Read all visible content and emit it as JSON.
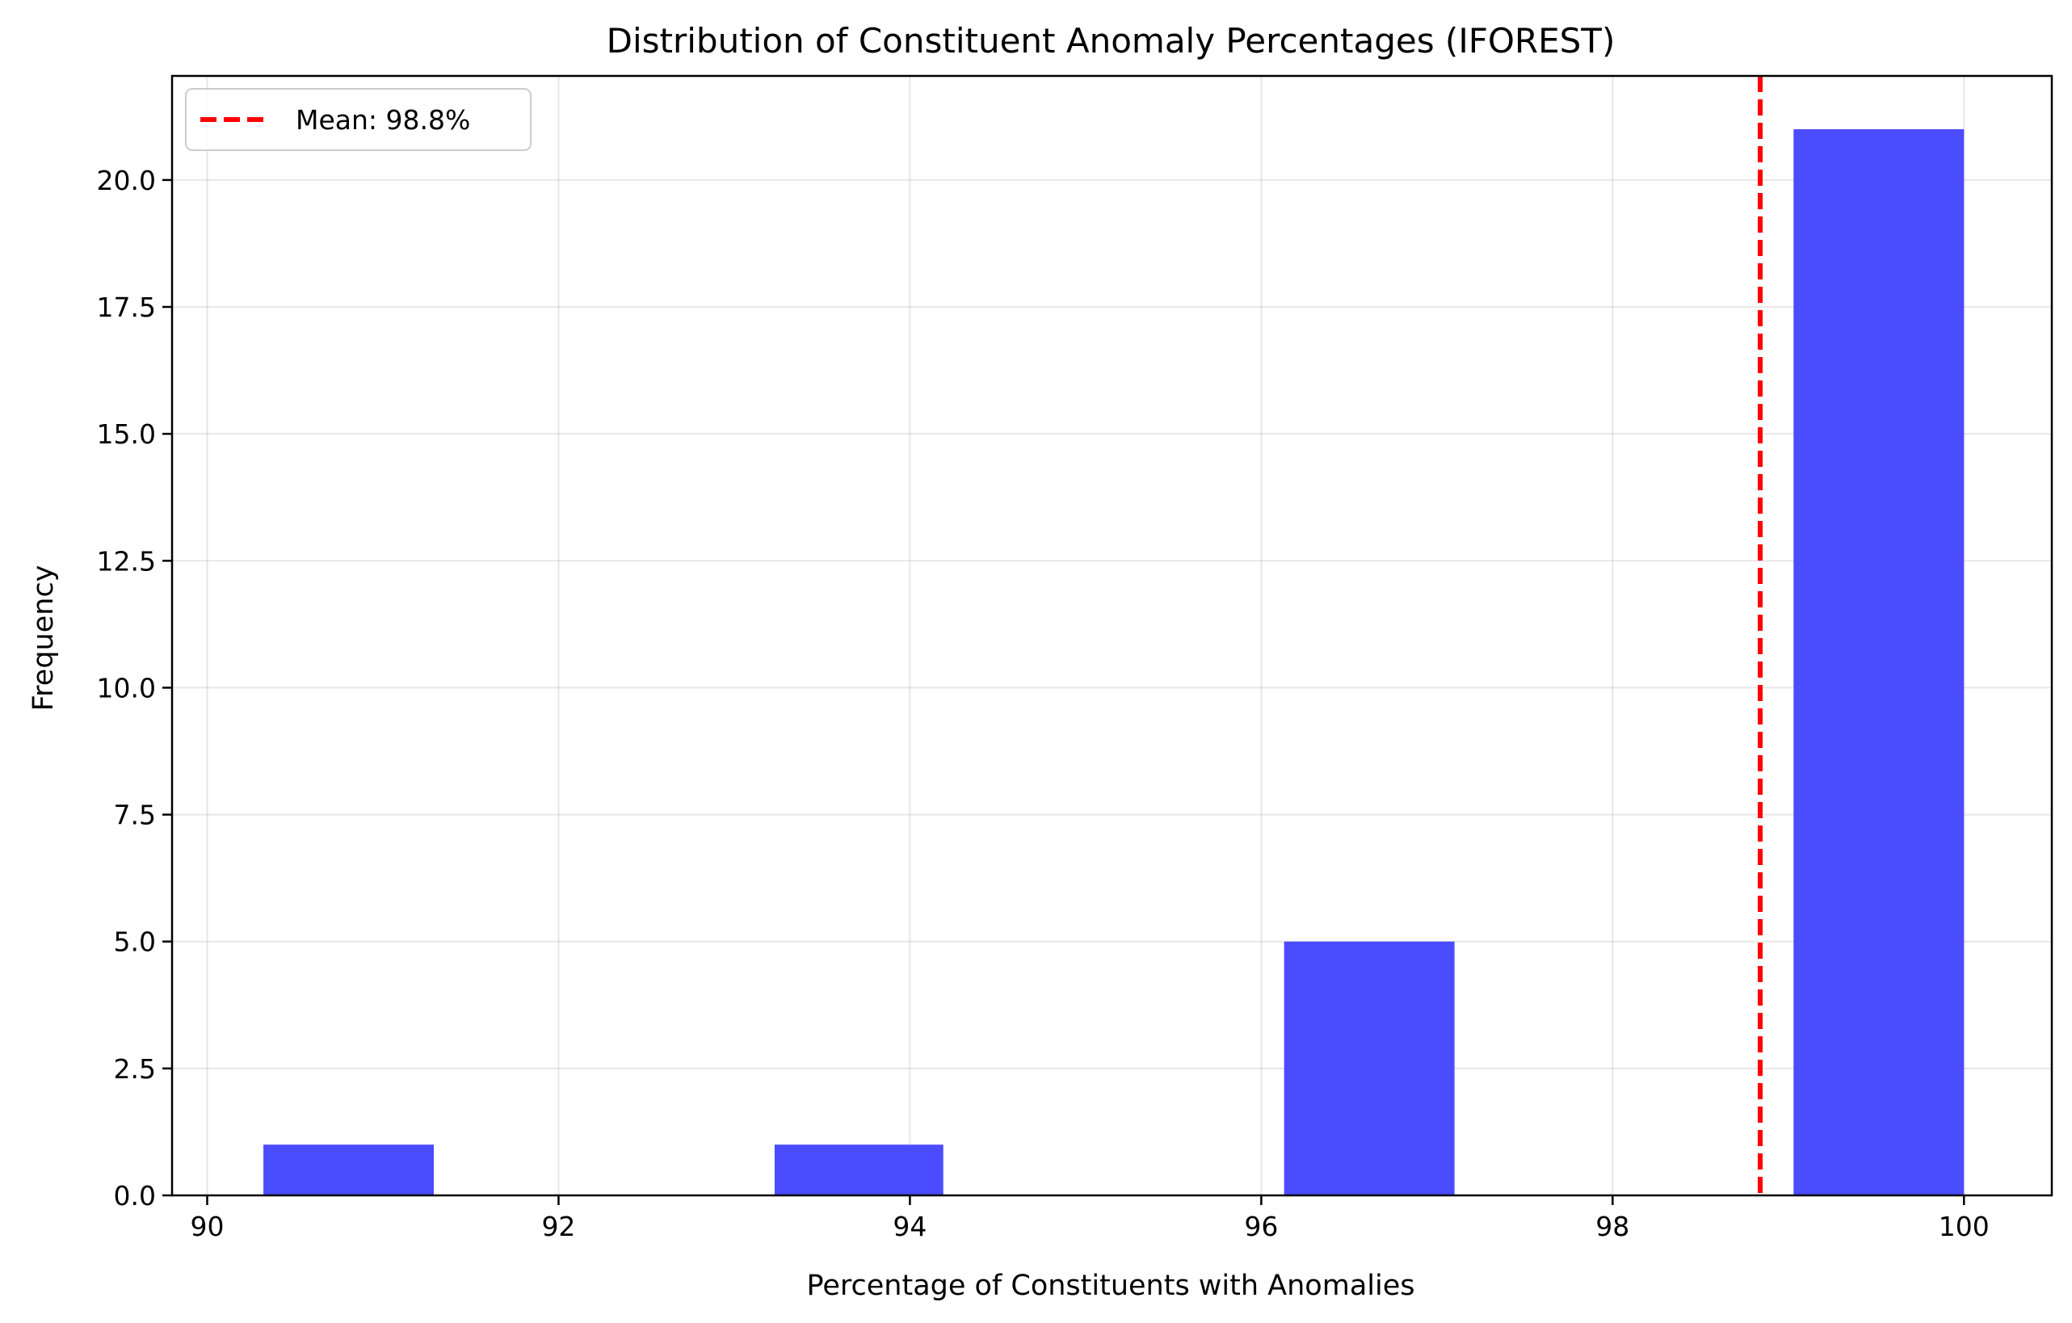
{
  "chart_data": {
    "type": "bar",
    "title": "Distribution of Constituent Anomaly Percentages (IFOREST)",
    "xlabel": "Percentage of Constituents with Anomalies",
    "ylabel": "Frequency",
    "xlim": [
      89.8,
      100.5
    ],
    "ylim": [
      0,
      22.05
    ],
    "x_ticks": [
      90,
      92,
      94,
      96,
      98,
      100
    ],
    "x_tick_labels": [
      "90",
      "92",
      "94",
      "96",
      "98",
      "100"
    ],
    "y_ticks": [
      0,
      2.5,
      5,
      7.5,
      10,
      12.5,
      15,
      17.5,
      20
    ],
    "y_tick_labels": [
      "0.0",
      "2.5",
      "5.0",
      "7.5",
      "10.0",
      "12.5",
      "15.0",
      "17.5",
      "20.0"
    ],
    "grid": true,
    "bins": [
      {
        "start": 90.32,
        "end": 91.29,
        "count": 1
      },
      {
        "start": 91.29,
        "end": 92.26,
        "count": 0
      },
      {
        "start": 92.26,
        "end": 93.23,
        "count": 0
      },
      {
        "start": 93.23,
        "end": 94.19,
        "count": 1
      },
      {
        "start": 94.19,
        "end": 95.16,
        "count": 0
      },
      {
        "start": 95.16,
        "end": 96.13,
        "count": 0
      },
      {
        "start": 96.13,
        "end": 97.1,
        "count": 5
      },
      {
        "start": 97.1,
        "end": 98.06,
        "count": 0
      },
      {
        "start": 98.06,
        "end": 99.03,
        "count": 0
      },
      {
        "start": 99.03,
        "end": 100.0,
        "count": 21
      }
    ],
    "bar_color": "#4c4cff",
    "mean_line": {
      "value": 98.84,
      "label": "Mean: 98.8%",
      "color": "#ff0000",
      "style": "dashed"
    },
    "legend": {
      "position": "upper-left"
    }
  }
}
